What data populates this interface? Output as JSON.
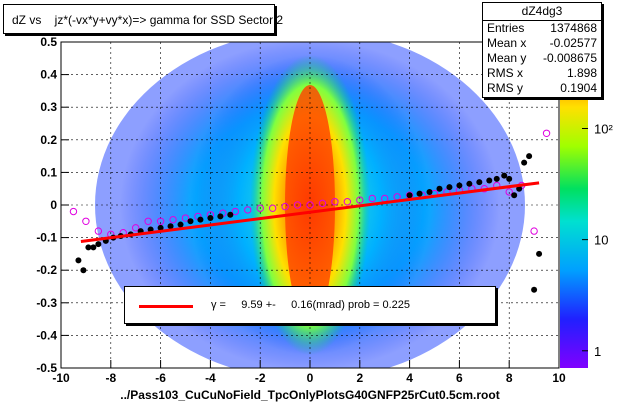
{
  "chart_data": {
    "type": "heatmap",
    "title": "dZ vs    jz*(-vx*y+vy*x)=> gamma for SSD Sector 2",
    "xlabel": "../Pass103_CuCuNoField_TpcOnlyPlotsG40GNFP25rCut0.5cm.root",
    "ylabel": "",
    "xlim": [
      -10,
      10
    ],
    "ylim": [
      -0.5,
      0.5
    ],
    "x_ticks": [
      "-10",
      "-8",
      "-6",
      "-4",
      "-2",
      "0",
      "2",
      "4",
      "6",
      "8",
      "10"
    ],
    "x_tick_values": [
      -10,
      -8,
      -6,
      -4,
      -2,
      0,
      2,
      4,
      6,
      8,
      10
    ],
    "y_ticks": [
      "-0.5",
      "-0.4",
      "-0.3",
      "-0.2",
      "-0.1",
      "0",
      "0.1",
      "0.2",
      "0.3",
      "0.4",
      "0.5"
    ],
    "y_tick_values": [
      -0.5,
      -0.4,
      -0.3,
      -0.2,
      -0.1,
      0,
      0.1,
      0.2,
      0.3,
      0.4,
      0.5
    ],
    "colorbar": {
      "scale": "log",
      "ticks": [
        "1",
        "10",
        "10²"
      ],
      "tick_values": [
        1,
        10,
        100
      ],
      "range": [
        0.7,
        600
      ]
    },
    "fit_line": {
      "color": "#ff0000",
      "x": [
        -9.2,
        9.2
      ],
      "y": [
        -0.112,
        0.068
      ]
    },
    "profile_black": {
      "x": [
        -9.3,
        -9.1,
        -8.9,
        -8.7,
        -8.5,
        -8.2,
        -7.9,
        -7.6,
        -7.2,
        -6.8,
        -6.4,
        -6.0,
        -5.6,
        -5.2,
        -4.8,
        -4.4,
        -4.0,
        -3.6,
        -3.2,
        4.0,
        4.4,
        4.8,
        5.2,
        5.6,
        6.0,
        6.4,
        6.8,
        7.2,
        7.5,
        7.8,
        8.0,
        8.2,
        8.4,
        8.6,
        8.8,
        9.0,
        9.2
      ],
      "y": [
        -0.17,
        -0.2,
        -0.13,
        -0.13,
        -0.12,
        -0.11,
        -0.1,
        -0.095,
        -0.09,
        -0.08,
        -0.075,
        -0.07,
        -0.065,
        -0.06,
        -0.05,
        -0.045,
        -0.04,
        -0.035,
        -0.03,
        0.03,
        0.035,
        0.04,
        0.05,
        0.055,
        0.06,
        0.065,
        0.07,
        0.075,
        0.08,
        0.09,
        0.08,
        0.03,
        0.05,
        0.13,
        0.15,
        -0.26,
        -0.15
      ]
    },
    "profile_magenta": {
      "x": [
        -9.5,
        -9.0,
        -8.5,
        -8.0,
        -7.5,
        -7.0,
        -6.5,
        -6.0,
        -5.5,
        -5.0,
        -4.5,
        -4.0,
        -3.5,
        -3.0,
        -2.5,
        -2.0,
        -1.5,
        -1.0,
        -0.5,
        0.0,
        0.5,
        1.0,
        1.5,
        2.0,
        2.5,
        3.0,
        3.5,
        4.0,
        4.5,
        5.0,
        5.5,
        6.0,
        6.5,
        7.0,
        7.5,
        8.0,
        8.5,
        9.0,
        9.5
      ],
      "y": [
        -0.02,
        -0.05,
        -0.08,
        -0.09,
        -0.085,
        -0.07,
        -0.05,
        -0.05,
        -0.045,
        -0.04,
        -0.035,
        -0.03,
        -0.025,
        -0.02,
        -0.015,
        -0.01,
        -0.01,
        -0.005,
        0.0,
        0.0,
        0.005,
        0.01,
        0.01,
        0.015,
        0.02,
        0.02,
        0.025,
        0.03,
        0.03,
        0.035,
        0.04,
        0.045,
        0.05,
        0.05,
        0.06,
        0.04,
        0.06,
        -0.08,
        0.22
      ]
    }
  },
  "stats": {
    "name": "dZ4dg3",
    "rows": [
      {
        "label": "Entries",
        "value": "1374868"
      },
      {
        "label": "Mean x",
        "value": "-0.02577"
      },
      {
        "label": "Mean y",
        "value": "-0.008675"
      },
      {
        "label": "RMS x",
        "value": "1.898"
      },
      {
        "label": "RMS y",
        "value": "0.1904"
      }
    ]
  },
  "legend": {
    "text": "γ =     9.59 +-     0.16(mrad) prob = 0.225"
  }
}
